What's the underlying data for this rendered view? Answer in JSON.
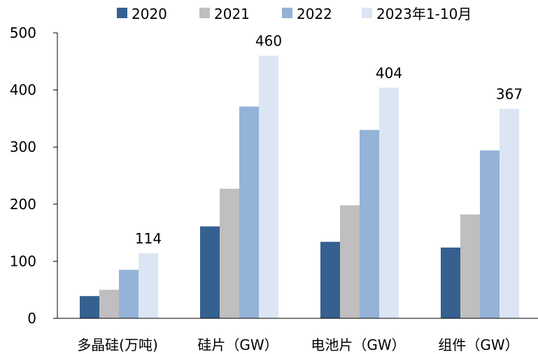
{
  "chart_data": {
    "type": "bar",
    "title": "",
    "xlabel": "",
    "ylabel": "",
    "ylim": [
      0,
      500
    ],
    "yticks": [
      0,
      100,
      200,
      300,
      400,
      500
    ],
    "grid": false,
    "legend_position": "top",
    "categories": [
      "多晶硅(万吨)",
      "硅片（GW）",
      "电池片（GW）",
      "组件（GW）"
    ],
    "series": [
      {
        "name": "2020",
        "color": "#35608F",
        "values": [
          39,
          161,
          134,
          124
        ]
      },
      {
        "name": "2021",
        "color": "#BFBFBF",
        "values": [
          50,
          227,
          198,
          182
        ]
      },
      {
        "name": "2022",
        "color": "#94B3D7",
        "values": [
          85,
          371,
          330,
          294
        ]
      },
      {
        "name": "2023年1-10月",
        "color": "#DCE5F4",
        "values": [
          114,
          460,
          404,
          367
        ]
      }
    ],
    "data_labels": {
      "series_index": 3,
      "values": [
        "114",
        "460",
        "404",
        "367"
      ]
    }
  }
}
